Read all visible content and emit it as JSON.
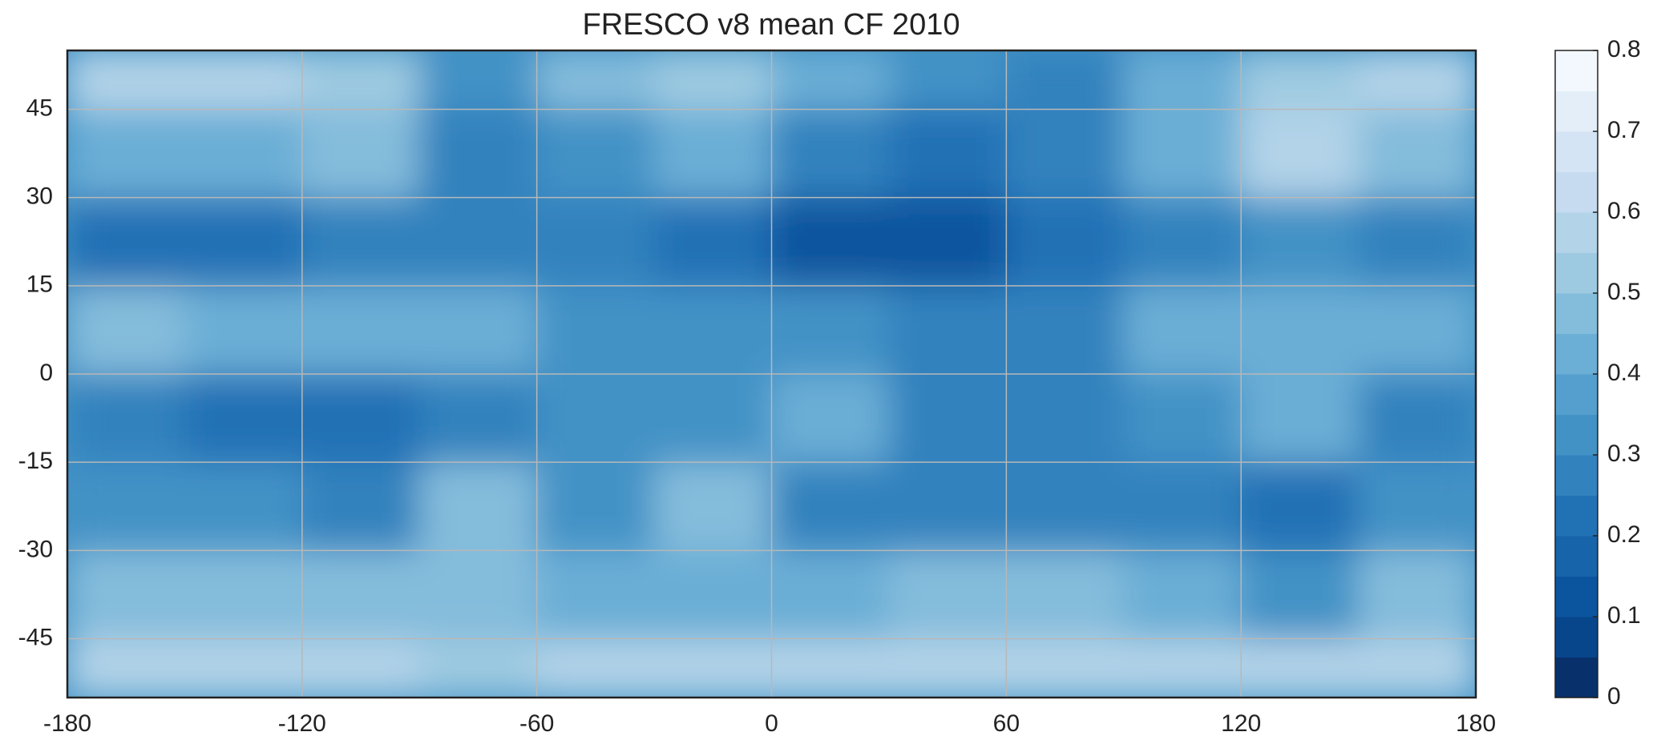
{
  "chart_data": {
    "type": "heatmap",
    "title": "FRESCO v8 mean CF 2010",
    "x_edges": [
      -180,
      -150,
      -120,
      -90,
      -60,
      -30,
      0,
      30,
      60,
      90,
      120,
      150,
      180
    ],
    "y_edges": [
      -55,
      -45,
      -30,
      -15,
      0,
      15,
      30,
      45,
      55
    ],
    "z": [
      [
        0.6,
        0.6,
        0.58,
        0.5,
        0.55,
        0.6,
        0.6,
        0.6,
        0.6,
        0.6,
        0.6,
        0.6
      ],
      [
        0.45,
        0.45,
        0.45,
        0.45,
        0.4,
        0.42,
        0.4,
        0.45,
        0.45,
        0.42,
        0.35,
        0.45
      ],
      [
        0.35,
        0.33,
        0.3,
        0.45,
        0.35,
        0.45,
        0.25,
        0.3,
        0.3,
        0.3,
        0.2,
        0.32
      ],
      [
        0.25,
        0.22,
        0.22,
        0.3,
        0.35,
        0.35,
        0.4,
        0.3,
        0.3,
        0.35,
        0.4,
        0.3
      ],
      [
        0.45,
        0.42,
        0.42,
        0.4,
        0.35,
        0.35,
        0.35,
        0.25,
        0.3,
        0.4,
        0.4,
        0.4
      ],
      [
        0.2,
        0.22,
        0.25,
        0.25,
        0.25,
        0.2,
        0.15,
        0.15,
        0.2,
        0.3,
        0.35,
        0.25
      ],
      [
        0.4,
        0.4,
        0.45,
        0.3,
        0.35,
        0.4,
        0.25,
        0.2,
        0.3,
        0.4,
        0.55,
        0.45
      ],
      [
        0.6,
        0.6,
        0.5,
        0.35,
        0.45,
        0.5,
        0.4,
        0.35,
        0.3,
        0.4,
        0.5,
        0.6
      ]
    ],
    "xlim": [
      -180,
      180
    ],
    "xticks": [
      -180,
      -120,
      -60,
      0,
      60,
      120,
      180
    ],
    "ylim": [
      -55,
      55
    ],
    "yticks": [
      -45,
      -30,
      -15,
      0,
      15,
      30,
      45
    ],
    "clim": [
      0,
      0.8
    ],
    "cticks": [
      0,
      0.1,
      0.2,
      0.3,
      0.4,
      0.5,
      0.6,
      0.7,
      0.8
    ],
    "colormap": [
      "#08306b",
      "#08468c",
      "#0b559f",
      "#1764ab",
      "#2171b5",
      "#3282be",
      "#4292c6",
      "#549fcd",
      "#6baed6",
      "#84bcdb",
      "#9ecae1",
      "#b2d3e8",
      "#c6dbef",
      "#d4e4f4",
      "#e3eef9",
      "#f3f8fe"
    ],
    "grid": true
  }
}
